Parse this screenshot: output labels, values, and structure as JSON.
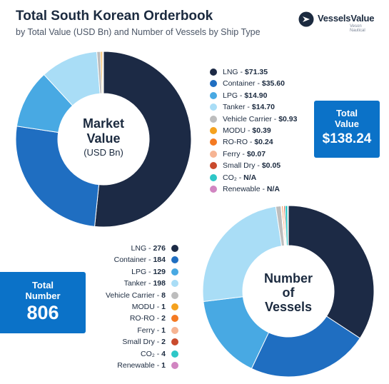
{
  "header": {
    "title": "Total South Korean Orderbook",
    "subtitle": "by Total Value (USD Bn) and Number of Vessels by Ship Type"
  },
  "logo": {
    "name": "VesselsValue",
    "tagline": "Veson Nautical"
  },
  "colors": {
    "lng": "#1c2a45",
    "container": "#1f6ec1",
    "lpg": "#48a9e3",
    "tanker": "#a9ddf6",
    "vehicle_carrier": "#bdbdbd",
    "modu": "#f5a21e",
    "roro": "#f47a22",
    "ferry": "#f6b493",
    "small_dry": "#c94a2d",
    "co2": "#2ec7c7",
    "renewable": "#d185c1",
    "box": "#0b72c8"
  },
  "market_value": {
    "center_line1": "Market",
    "center_line2": "Value",
    "center_line3": "(USD Bn)",
    "total_box": {
      "label_line1": "Total",
      "label_line2": "Value",
      "value": "$138.24"
    }
  },
  "vessels": {
    "center_line1": "Number",
    "center_line2": "of",
    "center_line3": "Vessels",
    "total_box": {
      "label_line1": "Total",
      "label_line2": "Number",
      "value": "806"
    }
  },
  "chart_data": [
    {
      "type": "pie",
      "categories": [
        "LNG",
        "Container",
        "LPG",
        "Tanker",
        "Vehicle Carrier",
        "MODU",
        "RO-RO",
        "Ferry",
        "Small Dry",
        "CO₂",
        "Renewable"
      ],
      "values": [
        71.35,
        35.6,
        14.9,
        14.7,
        0.93,
        0.39,
        0.24,
        0.07,
        0.05,
        null,
        null
      ],
      "value_labels": [
        "$71.35",
        "$35.60",
        "$14.90",
        "$14.70",
        "$0.93",
        "$0.39",
        "$0.24",
        "$0.07",
        "$0.05",
        "N/A",
        "N/A"
      ],
      "color_keys": [
        "lng",
        "container",
        "lpg",
        "tanker",
        "vehicle_carrier",
        "modu",
        "roro",
        "ferry",
        "small_dry",
        "co2",
        "renewable"
      ],
      "legend_position": "right"
    },
    {
      "type": "pie",
      "categories": [
        "LNG",
        "Container",
        "LPG",
        "Tanker",
        "Vehicle Carrier",
        "MODU",
        "RO-RO",
        "Ferry",
        "Small Dry",
        "CO₂",
        "Renewable"
      ],
      "values": [
        276,
        184,
        129,
        198,
        8,
        1,
        2,
        1,
        2,
        4,
        1
      ],
      "value_labels": [
        "276",
        "184",
        "129",
        "198",
        "8",
        "1",
        "2",
        "1",
        "2",
        "4",
        "1"
      ],
      "color_keys": [
        "lng",
        "container",
        "lpg",
        "tanker",
        "vehicle_carrier",
        "modu",
        "roro",
        "ferry",
        "small_dry",
        "co2",
        "renewable"
      ],
      "legend_position": "left"
    }
  ]
}
